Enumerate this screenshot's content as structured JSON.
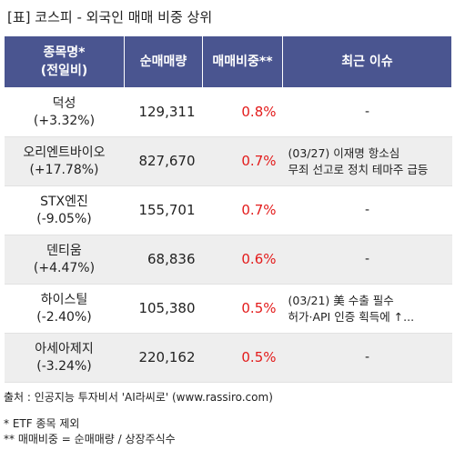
{
  "title": "[표] 코스피 - 외국인 매매 비중 상위",
  "headers": {
    "name": "종목명*",
    "name_sub": "(전일비)",
    "volume": "순매매량",
    "ratio": "매매비중**",
    "issue": "최근 이슈"
  },
  "rows": [
    {
      "name": "덕성",
      "change": "(+3.32%)",
      "volume": "129,311",
      "ratio": "0.8%",
      "issue_line1": "-",
      "issue_line2": ""
    },
    {
      "name": "오리엔트바이오",
      "change": "(+17.78%)",
      "volume": "827,670",
      "ratio": "0.7%",
      "issue_line1": "(03/27) 이재명 항소심",
      "issue_line2": "무죄 선고로 정치 테마주 급등"
    },
    {
      "name": "STX엔진",
      "change": "(-9.05%)",
      "volume": "155,701",
      "ratio": "0.7%",
      "issue_line1": "-",
      "issue_line2": ""
    },
    {
      "name": "덴티움",
      "change": "(+4.47%)",
      "volume": "68,836",
      "ratio": "0.6%",
      "issue_line1": "-",
      "issue_line2": ""
    },
    {
      "name": "하이스틸",
      "change": "(-2.40%)",
      "volume": "105,380",
      "ratio": "0.5%",
      "issue_line1": "(03/21) 美 수출 필수",
      "issue_line2": "허가·API 인증 획득에 ↑..."
    },
    {
      "name": "아세아제지",
      "change": "(-3.24%)",
      "volume": "220,162",
      "ratio": "0.5%",
      "issue_line1": "-",
      "issue_line2": ""
    }
  ],
  "footer": {
    "source": "출처 : 인공지능 투자비서 'AI라씨로' (www.rassiro.com)",
    "note1": "* ETF 종목 제외",
    "note2": "** 매매비중 = 순매매량 / 상장주식수"
  },
  "colors": {
    "header_bg": "#4a5590",
    "ratio_text": "#e31b1b",
    "alt_row_bg": "#eeeeee"
  }
}
